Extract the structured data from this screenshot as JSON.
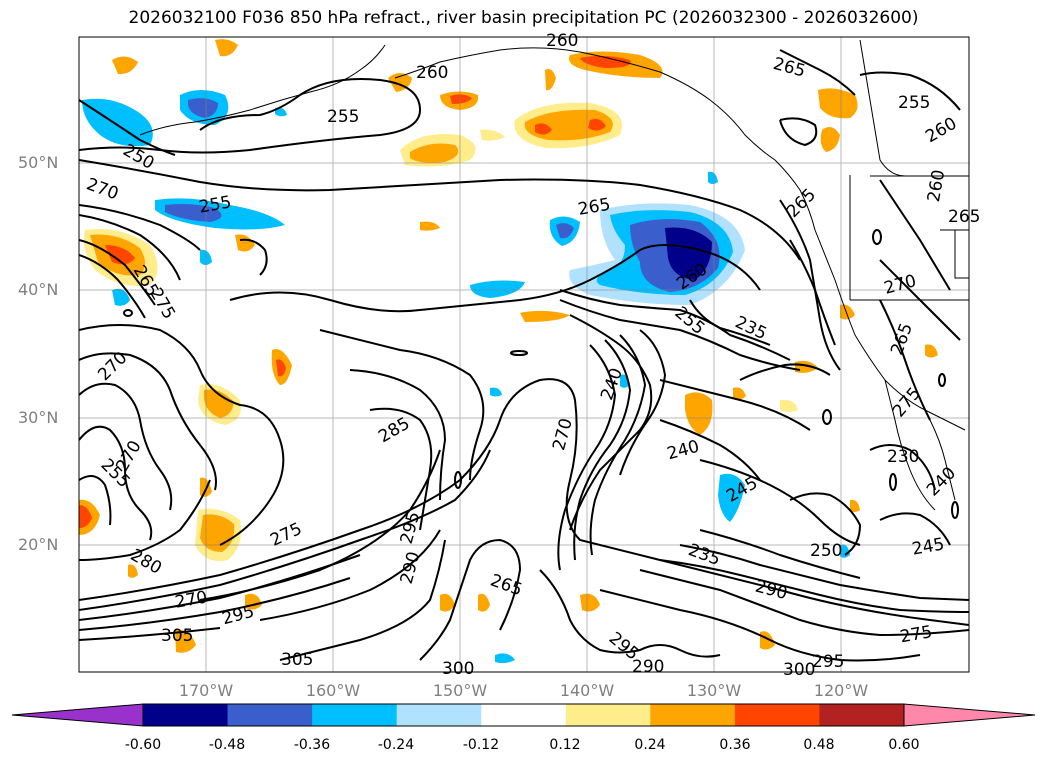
{
  "title": "2026032100 F036 850 hPa refract., river basin precipitation PC (2026032300 - 2026032600)",
  "lat_labels": [
    "50°N",
    "40°N",
    "30°N",
    "20°N"
  ],
  "lon_labels": [
    "170°W",
    "160°W",
    "150°W",
    "140°W",
    "130°W",
    "120°W"
  ],
  "colorbar": {
    "ticks": [
      "-0.60",
      "-0.48",
      "-0.36",
      "-0.24",
      "-0.12",
      "0.12",
      "0.24",
      "0.36",
      "0.48",
      "0.60"
    ],
    "colors": [
      "#9932CC",
      "#00008B",
      "#3A5FCD",
      "#00BFFF",
      "#B0E2FF",
      "#FFFFFF",
      "#FFEC8B",
      "#FFA500",
      "#FF4500",
      "#B22222",
      "#FF88AA"
    ]
  },
  "contour_labels": [
    "260",
    "265",
    "260",
    "255",
    "250",
    "255",
    "270",
    "255",
    "265",
    "255",
    "260",
    "265",
    "265",
    "270",
    "260",
    "265",
    "255",
    "235",
    "270",
    "275",
    "270",
    "285",
    "295",
    "290",
    "265",
    "270",
    "275",
    "280",
    "270",
    "295",
    "305",
    "305",
    "300",
    "295",
    "290",
    "240",
    "245",
    "235",
    "250",
    "245",
    "230",
    "240",
    "240",
    "290",
    "300",
    "295",
    "275",
    "265",
    "260",
    "275"
  ]
}
